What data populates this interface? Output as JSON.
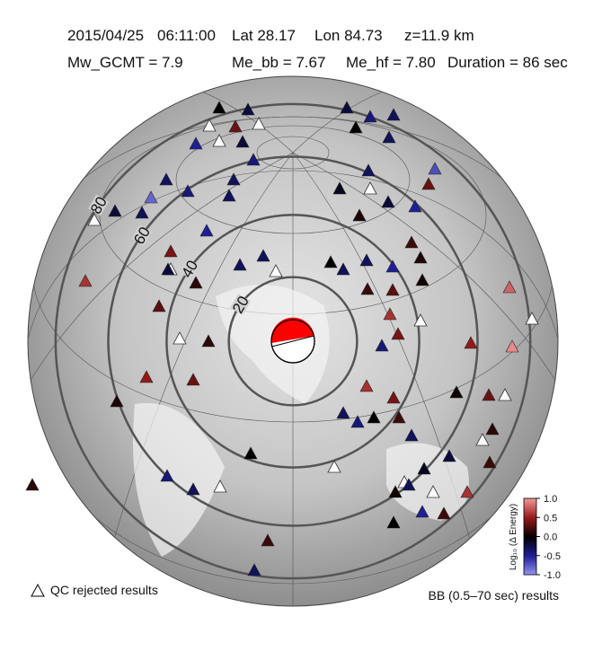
{
  "header": {
    "line1": [
      "2015/04/25",
      "06:11:00",
      "Lat 28.17",
      "Lon 84.73",
      "z=11.9 km"
    ],
    "line2": [
      "Mw_GCMT = 7.9",
      "Me_bb = 7.67",
      "Me_hf = 7.80",
      "Duration = 86 sec"
    ]
  },
  "map": {
    "distance_rings": [
      20,
      40,
      60,
      80
    ],
    "stations": [
      0.0,
      0.35,
      -0.2,
      -0.5,
      -0.2,
      -0.4,
      -0.2,
      -0.4,
      -0.3,
      0.0,
      -0.3,
      -0.3,
      -0.7,
      0.35,
      -0.5,
      -0.2,
      -0.1,
      0.1,
      0.2,
      0.1,
      -0.3,
      -0.5,
      0.0,
      -0.3,
      0.05,
      0.2,
      0.3,
      0.6,
      0.4,
      -0.4,
      0.8,
      0.5,
      0.95,
      0.35,
      0.05,
      0.6,
      0.4,
      -0.3,
      -0.4,
      0.0,
      0.2,
      -0.3,
      0.15,
      -0.2,
      0.2,
      -0.1,
      0.6,
      -0.3,
      0.05,
      0.2,
      -0.5,
      0.0,
      -0.3,
      -0.4,
      -0.3,
      -0.3,
      -0.2,
      -0.8,
      -0.3,
      -0.5,
      0.4,
      -0.2,
      0.6,
      0.15,
      -0.3,
      -0.3,
      0.3,
      0.15,
      0.5,
      0.35,
      0.1,
      0.0,
      -0.4,
      -0.3,
      0.15,
      0.2,
      -0.3
    ]
  },
  "colorbar": {
    "label": "Log₁₀ (Δ Energy)",
    "range": [
      -1,
      1
    ],
    "ticks": [
      {
        "value": 1,
        "label": "1.0"
      },
      {
        "value": 0.5,
        "label": "0.5"
      },
      {
        "value": 0,
        "label": "0.0"
      },
      {
        "value": -0.5,
        "label": "-0.5"
      },
      {
        "value": -1,
        "label": "-1.0"
      }
    ]
  },
  "legend": {
    "qc_rejected": "QC rejected results",
    "results": "BB (0.5–70 sec) results"
  }
}
